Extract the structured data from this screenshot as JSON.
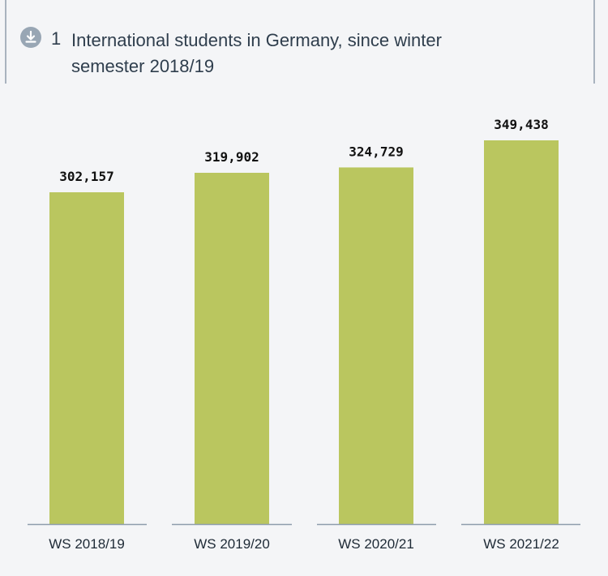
{
  "header": {
    "figure_number": "1",
    "title": "International students in Germany, since winter semester 2018/19",
    "download_icon": "download-icon"
  },
  "colors": {
    "bar": "#bac65f",
    "axis": "#8e9dac",
    "background": "#f4f5f7"
  },
  "chart_data": {
    "type": "bar",
    "title": "International students in Germany, since winter semester 2018/19",
    "categories": [
      "WS 2018/19",
      "WS 2019/20",
      "WS 2020/21",
      "WS 2021/22"
    ],
    "values": [
      302157,
      319902,
      324729,
      349438
    ],
    "value_labels": [
      "302,157",
      "319,902",
      "324,729",
      "349,438"
    ],
    "xlabel": "",
    "ylabel": "",
    "ylim": [
      0,
      349438
    ],
    "grid": false,
    "legend": "none"
  }
}
